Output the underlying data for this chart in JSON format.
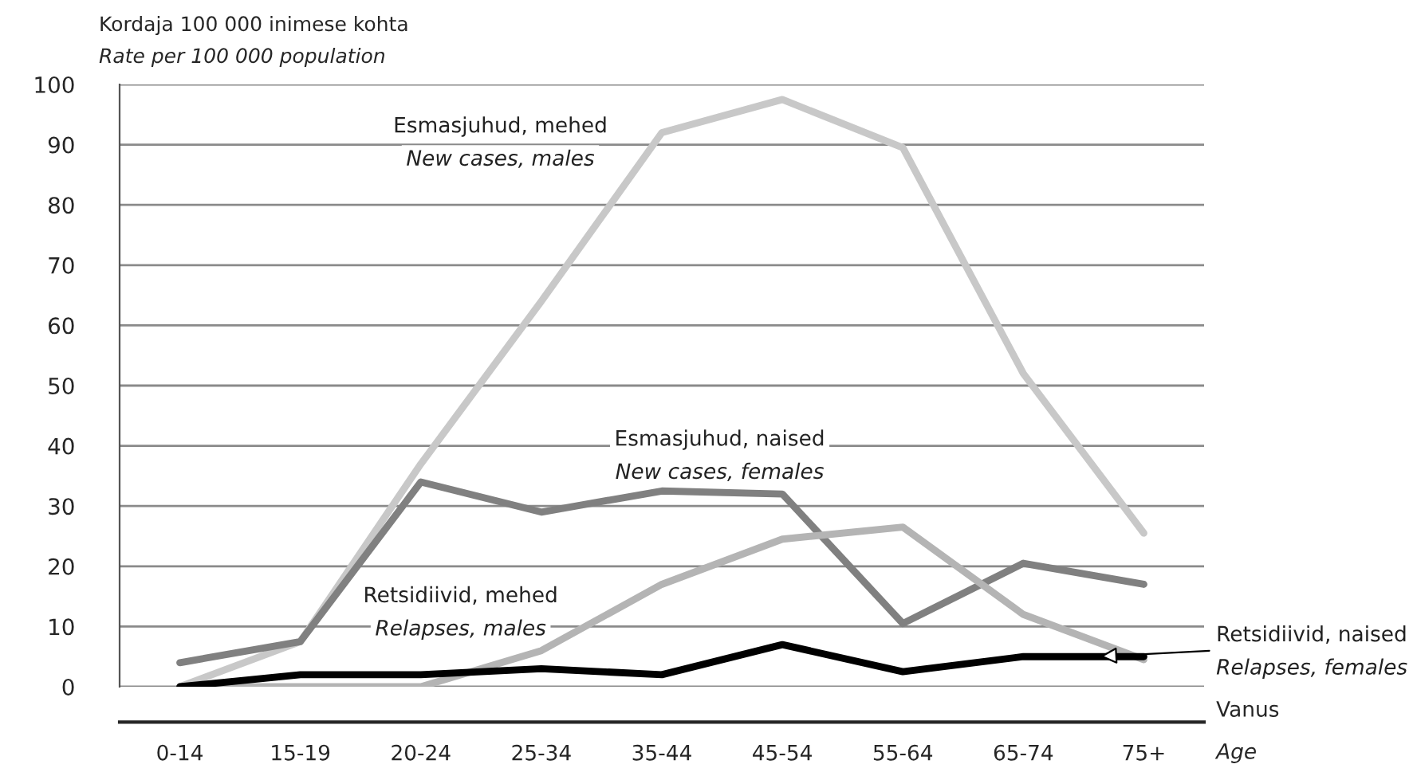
{
  "chart_data": {
    "type": "line",
    "ylabel": "Kordaja 100 000 inimese kohta\nRate per 100 000 population",
    "xlabel": "Vanus\nAge",
    "categories": [
      "0-14",
      "15-19",
      "20-24",
      "25-34",
      "35-44",
      "45-54",
      "55-64",
      "65-74",
      "75+"
    ],
    "series": [
      {
        "name": "Esmasjuhud, mehed\nNew cases, males",
        "color": "#c8c8c8",
        "values": [
          0,
          7.5,
          37,
          64,
          92,
          97.5,
          89.5,
          52,
          25.5
        ]
      },
      {
        "name": "Esmasjuhud, naised\nNew cases, females",
        "color": "#808080",
        "values": [
          4,
          7.5,
          34,
          29,
          32.5,
          32,
          10.5,
          20.5,
          17
        ]
      },
      {
        "name": "Retsidiivid, mehed\nRelapses, males",
        "color": "#b4b4b4",
        "values": [
          0,
          0,
          0,
          6,
          17,
          24.5,
          26.5,
          12,
          4.5
        ]
      },
      {
        "name": "Retsidiivid, naised\nRelapses, females",
        "color": "#000000",
        "values": [
          0,
          2,
          2,
          3,
          2,
          7,
          2.5,
          5,
          5
        ]
      }
    ],
    "ylim": [
      0,
      100
    ],
    "yticks": [
      0,
      10,
      20,
      30,
      40,
      50,
      60,
      70,
      80,
      90,
      100
    ],
    "grid": "y",
    "marker": "none",
    "line_style": "solid"
  }
}
